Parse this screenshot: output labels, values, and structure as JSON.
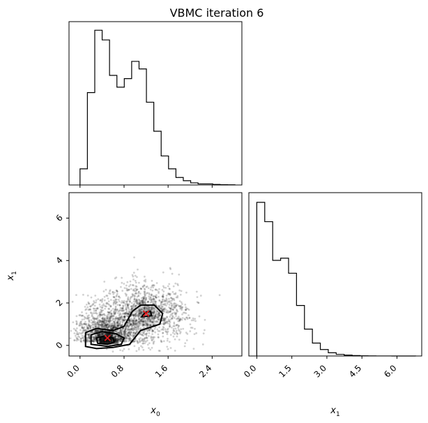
{
  "title": "VBMC iteration 6",
  "chart_data": [
    {
      "type": "bar",
      "panel": "histogram-x0",
      "variable": "x0",
      "style": "step",
      "bin_edges": [
        0.0,
        0.134,
        0.268,
        0.402,
        0.536,
        0.67,
        0.804,
        0.938,
        1.072,
        1.206,
        1.34,
        1.474,
        1.608,
        1.742,
        1.876,
        2.01,
        2.144,
        2.278,
        2.412,
        2.546,
        2.68,
        2.814
      ],
      "values": [
        15,
        86,
        144,
        135,
        102,
        91,
        99,
        115,
        108,
        77,
        50,
        27,
        15,
        7,
        4,
        2,
        1,
        1,
        0.5,
        0.3,
        0.2
      ],
      "xlim": [
        -0.2,
        2.94
      ],
      "ylim": [
        0,
        152
      ]
    },
    {
      "type": "scatter",
      "panel": "joint-x0-x1",
      "xlabel": "x_0",
      "ylabel": "x_1",
      "xticks": [
        "0.0",
        "0.8",
        "1.6",
        "2.4"
      ],
      "yticks": [
        "0",
        "2",
        "4",
        "6"
      ],
      "xlim": [
        -0.2,
        2.94
      ],
      "ylim": [
        -0.5,
        7.2
      ],
      "modes": [
        {
          "x": 0.5,
          "y": 0.35
        },
        {
          "x": 1.2,
          "y": 1.5
        }
      ],
      "marker_color": "#e41a1c",
      "contour_levels": 3
    },
    {
      "type": "bar",
      "panel": "histogram-x1",
      "variable": "x1",
      "style": "step",
      "xlabel": "x_1",
      "xticks": [
        "0.0",
        "1.5",
        "3.0",
        "4.5",
        "6.0"
      ],
      "bin_edges": [
        0.0,
        0.34,
        0.68,
        1.02,
        1.36,
        1.7,
        2.04,
        2.38,
        2.72,
        3.06,
        3.4,
        3.74,
        4.08,
        4.42,
        4.76,
        5.1,
        5.44,
        5.78,
        6.12,
        6.46,
        6.8
      ],
      "values": [
        143,
        125,
        89,
        91,
        77,
        47,
        25,
        12,
        6,
        3,
        1.5,
        0.8,
        0.4,
        0.2,
        0.1,
        0.05,
        0.03,
        0.02,
        0.01,
        0.01
      ],
      "xlim": [
        -0.34,
        7.06
      ],
      "ylim": [
        0,
        152
      ]
    }
  ]
}
